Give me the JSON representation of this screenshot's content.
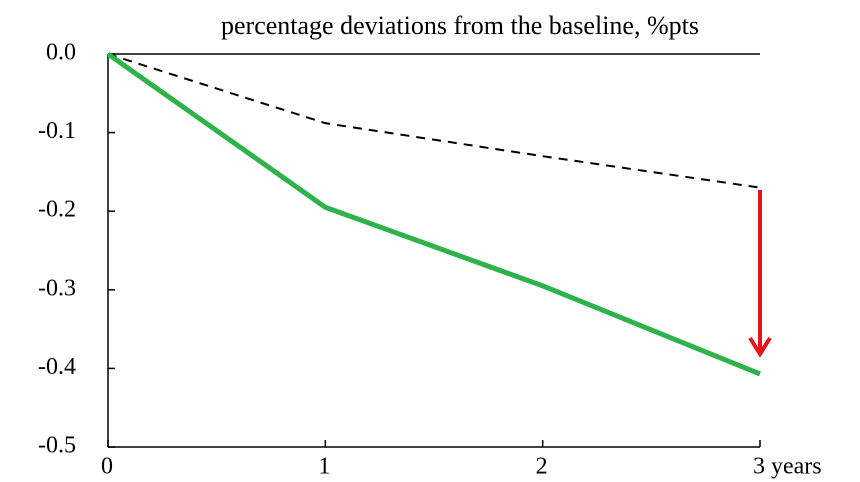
{
  "chart_data": {
    "type": "line",
    "title": "percentage deviations from the baseline, %pts",
    "x": [
      0,
      1,
      2,
      3
    ],
    "series": [
      {
        "color": "#2db34a",
        "linestyle": "solid",
        "values": [
          0,
          -0.195,
          -0.295,
          -0.407
        ]
      },
      {
        "color": "#000000",
        "linestyle": "dashed",
        "values": [
          0,
          -0.088,
          -0.13,
          -0.17
        ]
      }
    ],
    "xlim": [
      0,
      3
    ],
    "xticks": [
      0,
      1,
      2,
      {
        "value": 3,
        "label": "3 years"
      }
    ],
    "ylim": [
      -0.5,
      0
    ],
    "yticks": [
      {
        "value": 0,
        "label": "0.0"
      },
      -0.1,
      -0.2,
      -0.3,
      -0.4,
      -0.5
    ]
  }
}
